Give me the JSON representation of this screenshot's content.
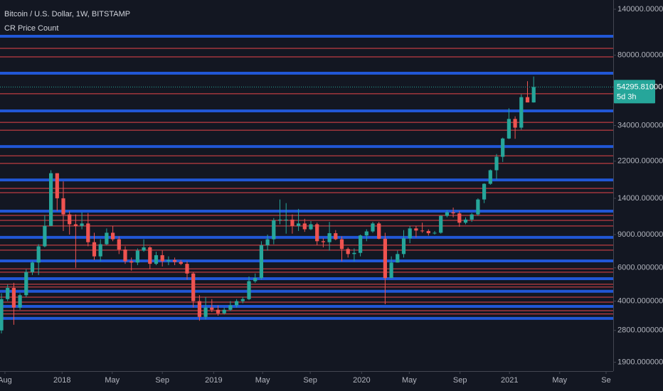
{
  "chart_data": {
    "type": "candlestick",
    "title": "Bitcoin / U.S. Dollar, 1W, BITSTAMP",
    "subtitle": "CR Price Count",
    "up_color": "#26a69a",
    "down_color": "#ef5350",
    "log_scale": true,
    "open": [
      2800,
      4100,
      4700,
      3700,
      4300,
      5700,
      6400,
      7800,
      10000,
      19000,
      14000,
      11500,
      10200,
      10000,
      10300,
      8200,
      6900,
      8000,
      9200,
      8500,
      7500,
      6500,
      6400,
      7400,
      7700,
      6300,
      7000,
      6500,
      6600,
      6450,
      6300,
      5600,
      4000,
      3300,
      3700,
      3600,
      3450,
      3600,
      3800,
      4000,
      4100,
      5100,
      5300,
      7900,
      8500,
      10700,
      10800,
      10800,
      10000,
      10300,
      9600,
      10200,
      8300,
      8200,
      9150,
      8500,
      7550,
      7100,
      7200,
      8900,
      9350,
      10300,
      8550,
      5300,
      6400,
      7100,
      8600,
      9700,
      9450,
      9400,
      9150,
      9200,
      11300,
      11800,
      11650,
      10400,
      10800,
      11500,
      13800,
      16700,
      19700,
      23200,
      29000,
      36800,
      33100,
      48000,
      45000
    ],
    "high": [
      4400,
      4900,
      5000,
      4400,
      5900,
      6500,
      8000,
      11400,
      19700,
      19000,
      17200,
      12000,
      11500,
      11800,
      11700,
      9200,
      8500,
      9700,
      10000,
      8800,
      7800,
      6800,
      7600,
      8500,
      7800,
      7300,
      7400,
      6900,
      6800,
      6600,
      6500,
      5700,
      4300,
      4200,
      4100,
      3800,
      3700,
      4000,
      4100,
      4200,
      5400,
      5600,
      8300,
      9000,
      11000,
      13800,
      13200,
      11500,
      12300,
      10900,
      10600,
      10400,
      8600,
      10500,
      9500,
      8800,
      7700,
      7600,
      9000,
      9600,
      10500,
      10500,
      9200,
      6900,
      7400,
      9500,
      10000,
      10000,
      10400,
      9600,
      9400,
      11400,
      12100,
      12500,
      12000,
      11100,
      11700,
      14000,
      16800,
      19900,
      24000,
      29300,
      41900,
      38000,
      49700,
      58300,
      61700
    ],
    "low": [
      2700,
      4000,
      3000,
      3600,
      4200,
      5500,
      5500,
      7700,
      10000,
      12000,
      9400,
      9000,
      6000,
      9600,
      7800,
      6600,
      6500,
      7900,
      8300,
      7100,
      6300,
      5800,
      6200,
      7300,
      5900,
      6200,
      6100,
      6200,
      6200,
      6200,
      5200,
      3700,
      3150,
      3200,
      3500,
      3350,
      3400,
      3550,
      3700,
      3900,
      4050,
      5000,
      5200,
      7400,
      8000,
      10200,
      9100,
      9100,
      9400,
      9300,
      9500,
      7900,
      7700,
      7400,
      8400,
      6500,
      6800,
      6500,
      6900,
      8300,
      9200,
      8500,
      3850,
      5300,
      6400,
      6800,
      8100,
      8700,
      9200,
      8900,
      9000,
      9100,
      11100,
      11100,
      9900,
      10200,
      10500,
      11300,
      13200,
      16500,
      17600,
      21800,
      28800,
      28900,
      32300,
      45000,
      44900
    ],
    "close": [
      4100,
      4700,
      3700,
      4300,
      5700,
      6400,
      7800,
      10000,
      19000,
      14000,
      11500,
      10200,
      10000,
      10300,
      8200,
      6900,
      8000,
      9200,
      8500,
      7500,
      6500,
      6400,
      7400,
      7700,
      6300,
      7000,
      6500,
      6600,
      6450,
      6300,
      5600,
      4000,
      3300,
      3700,
      3600,
      3450,
      3600,
      3800,
      4000,
      4100,
      5100,
      5300,
      7900,
      8500,
      10700,
      10800,
      10800,
      10000,
      10300,
      9600,
      10200,
      8300,
      8200,
      9150,
      8500,
      7550,
      7100,
      7200,
      8900,
      9350,
      10300,
      8550,
      5300,
      6400,
      7100,
      8600,
      9700,
      9450,
      9400,
      9150,
      9200,
      11300,
      11800,
      11650,
      10400,
      10800,
      11500,
      13800,
      16700,
      19700,
      23200,
      29000,
      36800,
      33100,
      48000,
      45000,
      54300
    ],
    "xlim": [
      -0.23,
      98.85
    ],
    "xticks": [
      {
        "value": 0.57,
        "label": "Aug"
      },
      {
        "value": 9.8,
        "label": "2018"
      },
      {
        "value": 17.9,
        "label": "May"
      },
      {
        "value": 26.0,
        "label": "Sep"
      },
      {
        "value": 34.3,
        "label": "2019"
      },
      {
        "value": 42.2,
        "label": "May"
      },
      {
        "value": 49.9,
        "label": "Sep"
      },
      {
        "value": 58.2,
        "label": "2020"
      },
      {
        "value": 65.9,
        "label": "May"
      },
      {
        "value": 74.1,
        "label": "Sep"
      },
      {
        "value": 82.1,
        "label": "2021"
      },
      {
        "value": 90.2,
        "label": "May"
      },
      {
        "value": 97.7,
        "label": "Se"
      }
    ],
    "ylim": [
      1706,
      156700
    ],
    "yticks": [
      {
        "value": 140000,
        "label": "140000.0000000"
      },
      {
        "value": 80000,
        "label": "80000.0000000"
      },
      {
        "value": 34000,
        "label": "34000.0000000"
      },
      {
        "value": 22000,
        "label": "22000.0000000"
      },
      {
        "value": 14000,
        "label": "14000.0000000"
      },
      {
        "value": 9000,
        "label": "9000.0000000"
      },
      {
        "value": 6000,
        "label": "6000.0000000"
      },
      {
        "value": 4000,
        "label": "4000.0000000"
      },
      {
        "value": 2800,
        "label": "2800.0000000"
      },
      {
        "value": 1900,
        "label": "1900.0000000"
      }
    ],
    "levels": [
      {
        "color": "#2157d6",
        "values": [
          100800,
          64250,
          40600,
          26300,
          17500,
          11970,
          8700,
          6530,
          5260,
          4510,
          3750,
          3240
        ]
      },
      {
        "color": "#e8464a",
        "values": [
          87000,
          78400,
          50000,
          35300,
          32100,
          23500,
          21400,
          15800,
          15000,
          11370,
          10700,
          9990,
          7910,
          7440,
          5930,
          5690,
          4910,
          4750,
          4200,
          3950,
          3560,
          3420
        ]
      }
    ],
    "last_price": {
      "value": 54295.81,
      "label": "54295.8100000"
    },
    "countdown": "5d 3h"
  }
}
